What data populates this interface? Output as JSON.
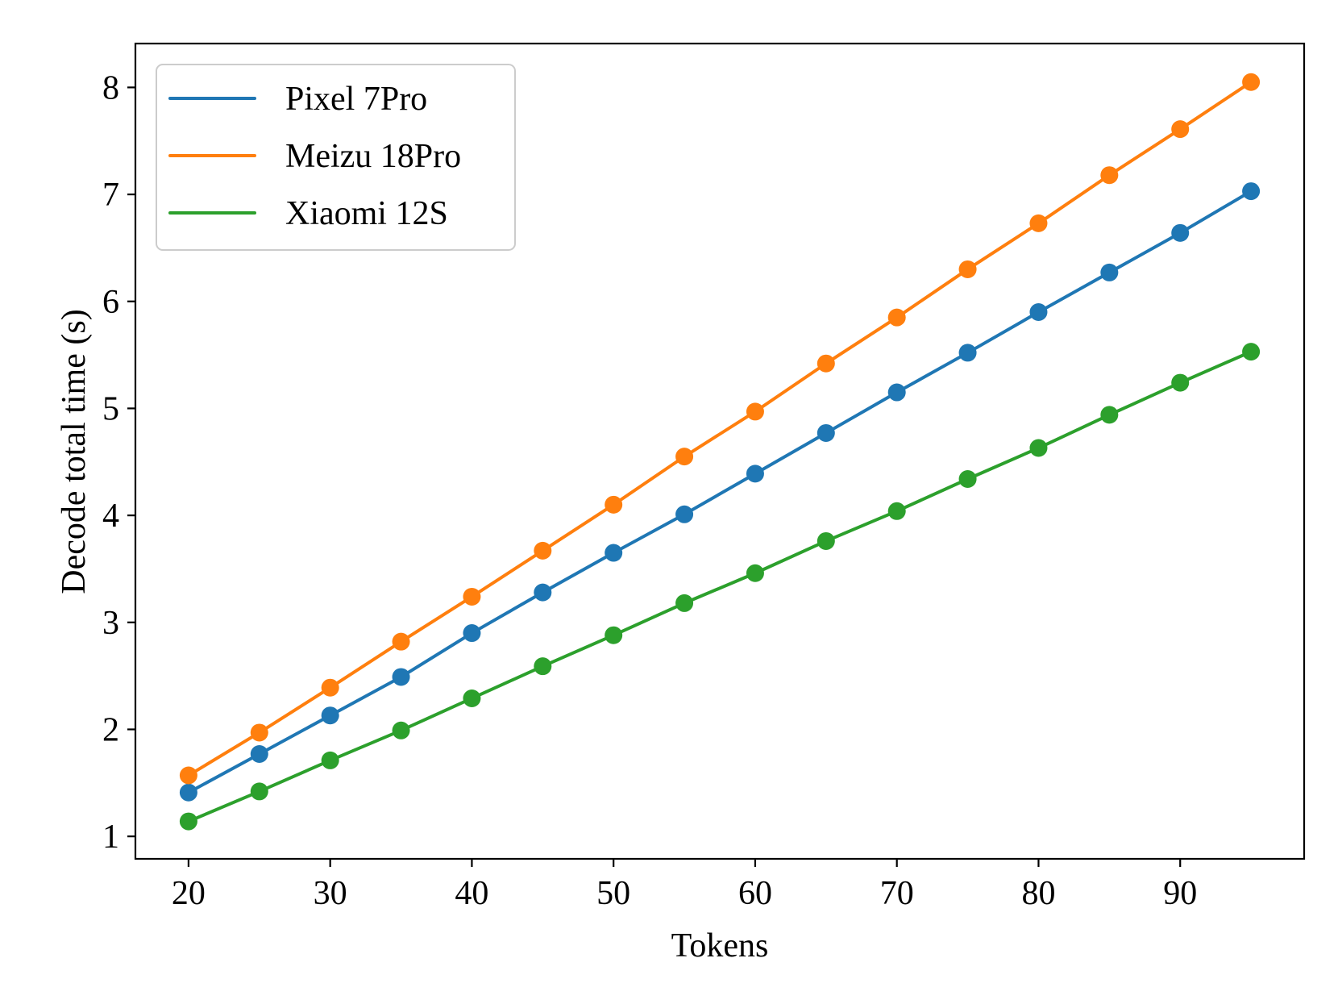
{
  "chart_data": {
    "type": "line",
    "title": "",
    "xlabel": "Tokens",
    "ylabel": "Decode total time (s)",
    "xlim": [
      16.25,
      98.75
    ],
    "ylim": [
      0.79,
      8.41
    ],
    "xticks": [
      20,
      30,
      40,
      50,
      60,
      70,
      80,
      90
    ],
    "yticks": [
      1,
      2,
      3,
      4,
      5,
      6,
      7,
      8
    ],
    "grid": false,
    "legend_position": "top-left",
    "x": [
      20,
      25,
      30,
      35,
      40,
      45,
      50,
      55,
      60,
      65,
      70,
      75,
      80,
      85,
      90,
      95
    ],
    "series": [
      {
        "name": "Pixel 7Pro",
        "color": "#1f77b4",
        "values": [
          1.41,
          1.77,
          2.13,
          2.49,
          2.9,
          3.28,
          3.65,
          4.01,
          4.39,
          4.77,
          5.15,
          5.52,
          5.9,
          6.27,
          6.64,
          7.03
        ]
      },
      {
        "name": "Meizu 18Pro",
        "color": "#ff7f0e",
        "values": [
          1.57,
          1.97,
          2.39,
          2.82,
          3.24,
          3.67,
          4.1,
          4.55,
          4.97,
          5.42,
          5.85,
          6.3,
          6.73,
          7.18,
          7.61,
          8.05
        ]
      },
      {
        "name": "Xiaomi 12S",
        "color": "#2ca02c",
        "values": [
          1.14,
          1.42,
          1.71,
          1.99,
          2.29,
          2.59,
          2.88,
          3.18,
          3.46,
          3.76,
          4.04,
          4.34,
          4.63,
          4.94,
          5.24,
          5.53
        ]
      }
    ]
  }
}
